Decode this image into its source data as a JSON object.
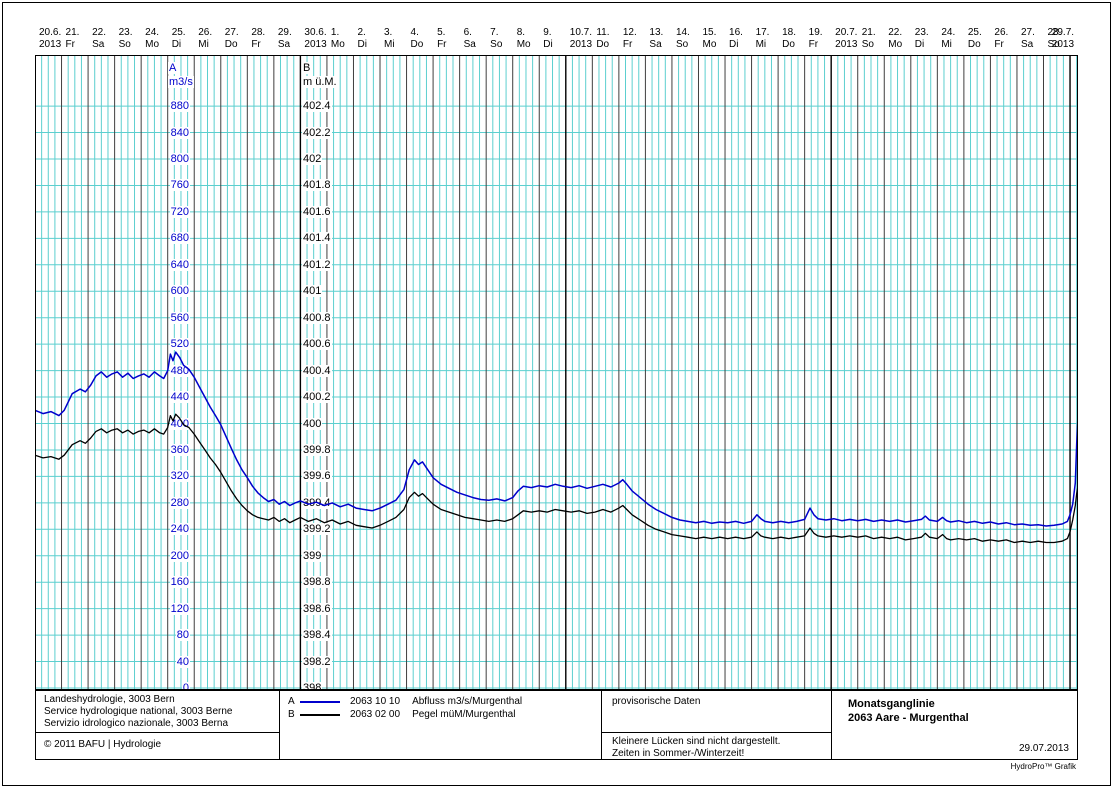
{
  "page": {
    "footer_brand": "HydroPro™ Grafik"
  },
  "colors": {
    "series_a": "#0000cc",
    "series_b": "#000000",
    "grid_minor": "#5ccfcf",
    "grid_day": "#3f3f3f",
    "grid_month": "#000000"
  },
  "legend": {
    "org_line1": "Landeshydrologie, 3003 Bern",
    "org_line2": "Service hydrologique national, 3003 Berne",
    "org_line3": "Servizio idrologico nazionale, 3003 Berna",
    "copyright": "© 2011 BAFU | Hydrologie",
    "provisional": "provisorische Daten",
    "note_line1": "Kleinere Lücken sind nicht dargestellt.",
    "note_line2": "Zeiten in Sommer-/Winterzeit!",
    "title_line1": "Monatsganglinie",
    "title_line2": "2063 Aare - Murgenthal",
    "date": "29.07.2013"
  },
  "chart_data": {
    "type": "line",
    "title": "Monatsganglinie",
    "subtitle": "2063 Aare - Murgenthal",
    "x_unit": "days since 20.06.2013",
    "x_range": [
      0,
      39.3
    ],
    "grid": true,
    "legend_position": "bottom",
    "x_ticks": [
      [
        "20.6.",
        "2013"
      ],
      [
        "21.",
        "Fr"
      ],
      [
        "22.",
        "Sa"
      ],
      [
        "23.",
        "So"
      ],
      [
        "24.",
        "Mo"
      ],
      [
        "25.",
        "Di"
      ],
      [
        "26.",
        "Mi"
      ],
      [
        "27.",
        "Do"
      ],
      [
        "28.",
        "Fr"
      ],
      [
        "29.",
        "Sa"
      ],
      [
        "30.6.",
        "2013"
      ],
      [
        "1.",
        "Mo"
      ],
      [
        "2.",
        "Di"
      ],
      [
        "3.",
        "Mi"
      ],
      [
        "4.",
        "Do"
      ],
      [
        "5.",
        "Fr"
      ],
      [
        "6.",
        "Sa"
      ],
      [
        "7.",
        "So"
      ],
      [
        "8.",
        "Mo"
      ],
      [
        "9.",
        "Di"
      ],
      [
        "10.7.",
        "2013"
      ],
      [
        "11.",
        "Do"
      ],
      [
        "12.",
        "Fr"
      ],
      [
        "13.",
        "Sa"
      ],
      [
        "14.",
        "So"
      ],
      [
        "15.",
        "Mo"
      ],
      [
        "16.",
        "Di"
      ],
      [
        "17.",
        "Mi"
      ],
      [
        "18.",
        "Do"
      ],
      [
        "19.",
        "Fr"
      ],
      [
        "20.7.",
        "2013"
      ],
      [
        "21.",
        "So"
      ],
      [
        "22.",
        "Mo"
      ],
      [
        "23.",
        "Di"
      ],
      [
        "24.",
        "Mi"
      ],
      [
        "25.",
        "Do"
      ],
      [
        "26.",
        "Fr"
      ],
      [
        "27.",
        "Sa"
      ],
      [
        "28.",
        "So"
      ],
      [
        "29.7.",
        "2013"
      ]
    ],
    "axis_a": {
      "name": "A",
      "unit": "m3/s",
      "min": 0,
      "max": 880,
      "step": 40,
      "ticks": [
        "880",
        "840",
        "800",
        "760",
        "720",
        "680",
        "640",
        "600",
        "560",
        "520",
        "480",
        "440",
        "400",
        "360",
        "320",
        "280",
        "240",
        "200",
        "160",
        "120",
        "80",
        "40",
        "0"
      ]
    },
    "axis_b": {
      "name": "B",
      "unit": "m ü.M.",
      "min": 398,
      "max": 402.4,
      "step": 0.2,
      "ticks": [
        "402.4",
        "402.2",
        "402",
        "401.8",
        "401.6",
        "401.4",
        "401.2",
        "401",
        "400.8",
        "400.6",
        "400.4",
        "400.2",
        "400",
        "399.8",
        "399.6",
        "399.4",
        "399.2",
        "399",
        "398.8",
        "398.6",
        "398.4",
        "398.2",
        "398"
      ]
    },
    "t": [
      0,
      0.3,
      0.6,
      0.9,
      1.1,
      1.4,
      1.7,
      1.9,
      2.1,
      2.3,
      2.5,
      2.7,
      2.9,
      3.1,
      3.3,
      3.5,
      3.7,
      3.9,
      4.1,
      4.3,
      4.5,
      4.7,
      4.85,
      5,
      5.1,
      5.2,
      5.3,
      5.45,
      5.6,
      5.8,
      6,
      6.2,
      6.4,
      6.6,
      6.8,
      7,
      7.2,
      7.4,
      7.6,
      7.8,
      8,
      8.2,
      8.4,
      8.6,
      8.8,
      9,
      9.2,
      9.4,
      9.6,
      9.8,
      10,
      10.3,
      10.6,
      10.9,
      11.2,
      11.5,
      11.8,
      12.1,
      12.4,
      12.7,
      13,
      13.3,
      13.6,
      13.9,
      14.1,
      14.3,
      14.45,
      14.6,
      14.8,
      15,
      15.3,
      15.6,
      15.9,
      16.2,
      16.5,
      16.8,
      17.1,
      17.4,
      17.7,
      18,
      18.2,
      18.4,
      18.7,
      19,
      19.3,
      19.6,
      19.9,
      20.2,
      20.5,
      20.8,
      21.1,
      21.4,
      21.7,
      22,
      22.15,
      22.3,
      22.5,
      22.8,
      23.1,
      23.4,
      23.7,
      24,
      24.3,
      24.6,
      24.9,
      25.2,
      25.5,
      25.8,
      26.1,
      26.4,
      26.7,
      27,
      27.2,
      27.35,
      27.5,
      27.8,
      28.1,
      28.4,
      28.7,
      29,
      29.2,
      29.35,
      29.5,
      29.8,
      30.1,
      30.4,
      30.7,
      31,
      31.3,
      31.6,
      31.9,
      32.2,
      32.5,
      32.8,
      33.1,
      33.4,
      33.55,
      33.7,
      34,
      34.2,
      34.35,
      34.5,
      34.8,
      35.1,
      35.4,
      35.7,
      36,
      36.3,
      36.6,
      36.9,
      37.2,
      37.5,
      37.8,
      38.1,
      38.4,
      38.7,
      38.9,
      39,
      39.1,
      39.2,
      39.25,
      39.3
    ],
    "series": [
      {
        "id": "A",
        "station_code": "2063 10 10",
        "name": "Abfluss m3/s/Murgenthal",
        "axis": "a",
        "color": "#0000cc",
        "values": [
          420,
          415,
          418,
          412,
          420,
          445,
          452,
          448,
          458,
          472,
          478,
          470,
          475,
          478,
          470,
          476,
          468,
          472,
          475,
          470,
          478,
          472,
          468,
          480,
          505,
          495,
          508,
          500,
          488,
          482,
          470,
          455,
          440,
          425,
          412,
          398,
          380,
          362,
          345,
          330,
          318,
          305,
          295,
          288,
          282,
          285,
          278,
          282,
          276,
          280,
          283,
          278,
          281,
          276,
          280,
          274,
          278,
          272,
          270,
          268,
          272,
          278,
          284,
          300,
          330,
          345,
          338,
          342,
          330,
          318,
          308,
          302,
          296,
          292,
          288,
          285,
          284,
          286,
          283,
          288,
          298,
          305,
          303,
          306,
          304,
          308,
          305,
          303,
          306,
          302,
          305,
          308,
          304,
          310,
          315,
          308,
          298,
          288,
          278,
          270,
          264,
          258,
          254,
          252,
          250,
          252,
          249,
          251,
          250,
          252,
          249,
          252,
          262,
          256,
          252,
          250,
          252,
          250,
          252,
          255,
          272,
          262,
          256,
          254,
          256,
          253,
          255,
          253,
          255,
          252,
          254,
          252,
          254,
          251,
          253,
          255,
          260,
          254,
          252,
          258,
          253,
          251,
          253,
          250,
          252,
          249,
          251,
          248,
          250,
          247,
          248,
          246,
          247,
          245,
          246,
          248,
          252,
          262,
          278,
          310,
          370,
          412
        ]
      },
      {
        "id": "B",
        "station_code": "2063 02 00",
        "name": "Pegel müM/Murgenthal",
        "axis": "b",
        "color": "#000000",
        "values": [
          399.76,
          399.74,
          399.75,
          399.73,
          399.76,
          399.84,
          399.87,
          399.85,
          399.89,
          399.94,
          399.96,
          399.93,
          399.95,
          399.96,
          399.93,
          399.95,
          399.92,
          399.94,
          399.95,
          399.93,
          399.96,
          399.93,
          399.92,
          399.97,
          400.06,
          400.02,
          400.07,
          400.04,
          399.99,
          399.97,
          399.92,
          399.86,
          399.8,
          399.74,
          399.69,
          399.63,
          399.56,
          399.49,
          399.43,
          399.38,
          399.34,
          399.31,
          399.29,
          399.28,
          399.27,
          399.29,
          399.26,
          399.28,
          399.25,
          399.27,
          399.29,
          399.26,
          399.28,
          399.25,
          399.27,
          399.24,
          399.26,
          399.23,
          399.22,
          399.21,
          399.23,
          399.26,
          399.29,
          399.35,
          399.44,
          399.48,
          399.45,
          399.47,
          399.43,
          399.39,
          399.35,
          399.33,
          399.31,
          399.29,
          399.28,
          399.27,
          399.26,
          399.27,
          399.26,
          399.28,
          399.31,
          399.34,
          399.33,
          399.34,
          399.33,
          399.35,
          399.34,
          399.33,
          399.34,
          399.32,
          399.33,
          399.35,
          399.33,
          399.36,
          399.38,
          399.35,
          399.31,
          399.27,
          399.23,
          399.2,
          399.18,
          399.16,
          399.15,
          399.14,
          399.13,
          399.14,
          399.13,
          399.14,
          399.13,
          399.14,
          399.13,
          399.14,
          399.18,
          399.15,
          399.14,
          399.13,
          399.14,
          399.13,
          399.14,
          399.15,
          399.21,
          399.17,
          399.15,
          399.14,
          399.15,
          399.14,
          399.15,
          399.14,
          399.15,
          399.13,
          399.14,
          399.13,
          399.14,
          399.12,
          399.13,
          399.14,
          399.17,
          399.14,
          399.13,
          399.16,
          399.13,
          399.12,
          399.13,
          399.12,
          399.13,
          399.11,
          399.12,
          399.11,
          399.12,
          399.1,
          399.11,
          399.1,
          399.11,
          399.1,
          399.1,
          399.11,
          399.13,
          399.18,
          399.27,
          399.38,
          399.47,
          399.53
        ]
      }
    ]
  }
}
